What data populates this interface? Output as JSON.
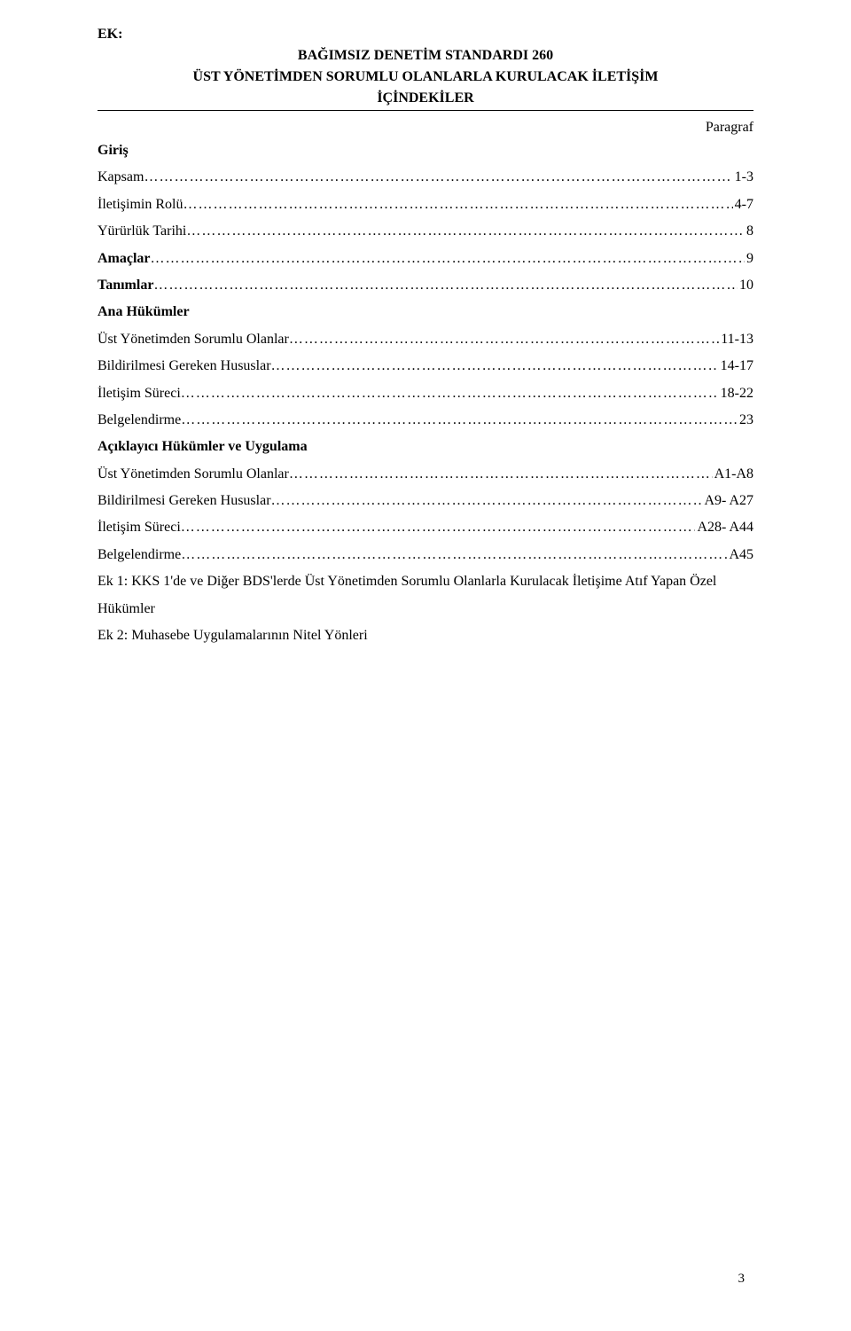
{
  "header": {
    "ek": "EK:",
    "title": "BAĞIMSIZ DENETİM STANDARDI 260",
    "subtitle": "ÜST YÖNETİMDEN SORUMLU OLANLARLA KURULACAK İLETİŞİM",
    "toc_heading": "İÇİNDEKİLER",
    "paragraf_label": "Paragraf"
  },
  "toc": {
    "giris": "Giriş",
    "kapsam": {
      "label": "Kapsam",
      "page": "1-3"
    },
    "iletisimin_rolu": {
      "label": "İletişimin Rolü",
      "page": "4-7"
    },
    "yururluk_tarihi": {
      "label": "Yürürlük Tarihi",
      "page": "8"
    },
    "amaclar": {
      "label": "Amaçlar",
      "page": "9"
    },
    "tanimlar": {
      "label": "Tanımlar",
      "page": "10"
    },
    "ana_hukumler": "Ana Hükümler",
    "ust_yonetim_1": {
      "label": "Üst Yönetimden Sorumlu Olanlar",
      "page": "11-13"
    },
    "bildirilmesi_1": {
      "label": "Bildirilmesi Gereken Hususlar",
      "page": "14-17"
    },
    "iletisim_sureci_1": {
      "label": "İletişim Süreci",
      "page": "18-22"
    },
    "belgelendirme_1": {
      "label": "Belgelendirme",
      "page": "23"
    },
    "aciklayici": "Açıklayıcı Hükümler ve Uygulama",
    "ust_yonetim_2": {
      "label": "Üst Yönetimden Sorumlu Olanlar",
      "page": "A1-A8"
    },
    "bildirilmesi_2": {
      "label": "Bildirilmesi Gereken Hususlar",
      "page": "A9- A27"
    },
    "iletisim_sureci_2": {
      "label": "İletişim Süreci",
      "page": "A28- A44"
    },
    "belgelendirme_2": {
      "label": "Belgelendirme",
      "page": "A45"
    }
  },
  "appendices": {
    "ek1": "Ek 1: KKS 1'de ve Diğer BDS'lerde Üst Yönetimden Sorumlu Olanlarla Kurulacak İletişime Atıf Yapan Özel Hükümler",
    "ek2": "Ek 2:  Muhasebe Uygulamalarının Nitel Yönleri"
  },
  "page_number": "3",
  "colors": {
    "text": "#000000",
    "background": "#ffffff",
    "rule": "#000000"
  }
}
